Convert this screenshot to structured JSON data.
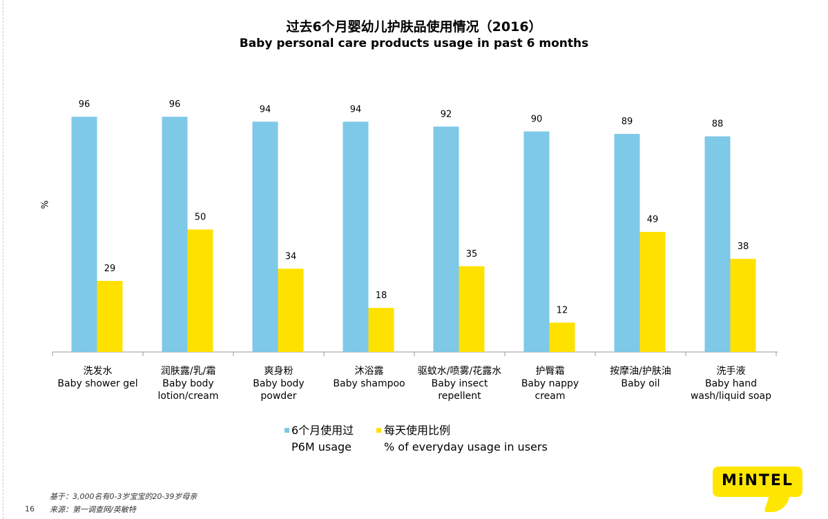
{
  "title_zh": "过去6个月婴幼儿护肤品使用情况（2016）",
  "title_en": "Baby personal care products usage in past 6 months",
  "y_unit": "%",
  "legend": {
    "p6m_zh": "6个月使用过",
    "p6m_en": "P6M usage",
    "daily_zh": "每天使用比例",
    "daily_en": "% of everyday usage in users"
  },
  "footnote": {
    "base": "基于：3,000名有0-3岁宝宝的20-39岁母亲",
    "source": "来源：第一调查网/英敏特"
  },
  "page_number": "16",
  "logo_text": "MiNTEL",
  "colors": {
    "p6m": "#7ec8e8",
    "daily": "#ffe100",
    "logo": "#ffe600"
  },
  "chart_data": {
    "type": "bar",
    "ylim": [
      0,
      100
    ],
    "categories": [
      {
        "zh": "洗发水",
        "en": "Baby shower  gel"
      },
      {
        "zh": "润肤露/乳/霜",
        "en": "Baby body lotion/cream"
      },
      {
        "zh": "爽身粉",
        "en": "Baby body  powder"
      },
      {
        "zh": "沐浴露",
        "en": "Baby shampoo"
      },
      {
        "zh": "驱蚊水/喷雾/花露水",
        "en": "Baby insect repellent"
      },
      {
        "zh": "护臀霜",
        "en": "Baby nappy  cream"
      },
      {
        "zh": "按摩油/护肤油",
        "en": "Baby oil"
      },
      {
        "zh": "洗手液",
        "en": "Baby hand wash/liquid soap"
      }
    ],
    "series": [
      {
        "name": "6个月使用过 P6M usage",
        "values": [
          96,
          96,
          94,
          94,
          92,
          90,
          89,
          88
        ]
      },
      {
        "name": "每天使用比例 % of everyday usage in users",
        "values": [
          29,
          50,
          34,
          18,
          35,
          12,
          49,
          38
        ]
      }
    ]
  }
}
